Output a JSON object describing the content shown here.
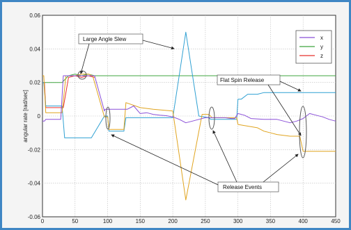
{
  "chart_data": {
    "type": "line",
    "xlabel": "",
    "ylabel": "angular rate [rad/sec]",
    "xlim": [
      0,
      450
    ],
    "ylim": [
      -0.06,
      0.06
    ],
    "grid": true,
    "legend_position": "top-right",
    "x_ticks": [
      "0",
      "50",
      "100",
      "150",
      "200",
      "250",
      "300",
      "350",
      "400",
      "450"
    ],
    "y_ticks": [
      "-0.06",
      "-0.04",
      "-0.02",
      "0",
      "0.02",
      "0.04",
      "0.06"
    ],
    "series": [
      {
        "name": "x",
        "color": "#8a4fd8",
        "x": [
          0,
          3,
          5,
          10,
          20,
          28,
          32,
          40,
          50,
          60,
          70,
          80,
          95,
          96,
          100,
          120,
          130,
          140,
          150,
          160,
          170,
          180,
          190,
          200,
          210,
          220,
          230,
          240,
          250,
          260,
          270,
          280,
          290,
          295,
          300,
          310,
          320,
          340,
          360,
          380,
          390,
          400,
          410,
          420,
          430,
          440,
          450
        ],
        "y": [
          -0.003,
          -0.003,
          -0.002,
          -0.002,
          -0.002,
          -0.002,
          0.024,
          0.024,
          0.024,
          0.024,
          0.024,
          0.024,
          0.003,
          0.004,
          0.004,
          0.004,
          0.004,
          0.006,
          0.0015,
          0.002,
          0.001,
          0.0005,
          0.0002,
          -0.0005,
          -0.002,
          -0.004,
          -0.003,
          -0.002,
          -0.001,
          -0.001,
          -0.001,
          -0.001,
          -0.0015,
          -0.0015,
          0.0015,
          0.0005,
          -0.0015,
          -0.002,
          -0.002,
          -0.004,
          -0.003,
          -0.0015,
          0.0015,
          0.0005,
          -0.0005,
          -0.002,
          -0.003
        ]
      },
      {
        "name": "y",
        "color": "#3fa43f",
        "x": [
          0,
          5,
          30,
          40,
          50,
          60,
          70,
          80,
          450
        ],
        "y": [
          0.02,
          0.02,
          0.02,
          0.024,
          0.025,
          0.024,
          0.025,
          0.024,
          0.024
        ]
      },
      {
        "name": "z",
        "color": "#e8302c",
        "x": [
          0,
          3,
          5,
          32,
          40,
          50,
          60,
          70,
          80
        ],
        "y": [
          0.02,
          0.02,
          0.005,
          0.005,
          0.023,
          0.024,
          0.023,
          0.024,
          0.023
        ]
      },
      {
        "name": "",
        "color": "#e0a41f",
        "x": [
          0,
          2,
          5,
          30,
          36,
          40,
          50,
          60,
          70,
          77,
          80,
          95,
          100,
          102,
          125,
          128,
          150,
          170,
          200,
          220,
          245,
          255,
          258,
          260,
          270,
          280,
          298,
          300,
          330,
          340,
          350,
          360,
          380,
          395,
          400,
          420,
          450
        ],
        "y": [
          0.024,
          0.024,
          0.002,
          0.002,
          0.024,
          0.024,
          0.024,
          0.025,
          0.025,
          0.024,
          0.02,
          -0.0005,
          -0.0005,
          -0.008,
          -0.008,
          0.008,
          0.005,
          0.004,
          0.003,
          -0.05,
          0.001,
          0.001,
          0.0,
          -0.001,
          -0.001,
          -0.001,
          -0.001,
          -0.005,
          -0.007,
          -0.009,
          -0.01,
          -0.011,
          -0.012,
          -0.012,
          -0.021,
          -0.021,
          -0.021
        ]
      },
      {
        "name": "",
        "color": "#2fa0d2",
        "x": [
          0,
          2,
          5,
          30,
          34,
          50,
          60,
          75,
          95,
          97,
          100,
          102,
          125,
          128,
          150,
          170,
          200,
          220,
          240,
          255,
          258,
          260,
          280,
          298,
          300,
          305,
          315,
          330,
          340,
          360,
          380,
          395,
          400,
          420,
          450
        ],
        "y": [
          0.02,
          0.02,
          0.006,
          0.006,
          -0.013,
          -0.013,
          -0.013,
          -0.013,
          0.0,
          0.0,
          0.0,
          -0.009,
          -0.009,
          -0.001,
          -0.001,
          -0.001,
          -0.001,
          0.05,
          0.0,
          -0.001,
          -0.002,
          -0.002,
          -0.002,
          -0.002,
          0.01,
          0.01,
          0.013,
          0.013,
          0.014,
          0.014,
          0.014,
          0.014,
          0.014,
          0.014,
          0.014
        ]
      }
    ],
    "annotations": [
      {
        "text": "Large Angle Slew"
      },
      {
        "text": "Flat Spin Release"
      },
      {
        "text": "Release Events"
      }
    ]
  }
}
